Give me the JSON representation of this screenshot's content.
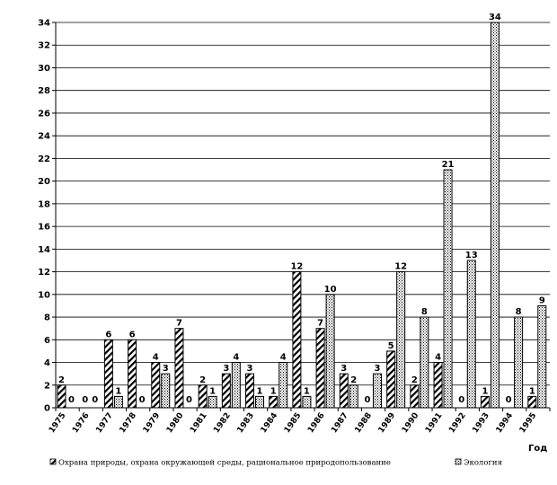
{
  "chart_data": {
    "type": "bar",
    "categories": [
      "1975",
      "1976",
      "1977",
      "1978",
      "1979",
      "1980",
      "1981",
      "1982",
      "1983",
      "1984",
      "1985",
      "1986",
      "1987",
      "1988",
      "1989",
      "1990",
      "1991",
      "1992",
      "1993",
      "1994",
      "1995"
    ],
    "series": [
      {
        "name": "Охрана природы, охрана окружающей среды, рациональное природопользование",
        "values": [
          2,
          0,
          6,
          6,
          4,
          7,
          2,
          3,
          3,
          1,
          12,
          7,
          3,
          0,
          5,
          2,
          4,
          0,
          1,
          0,
          1
        ],
        "pattern": "diagonal-hatch"
      },
      {
        "name": "Экология",
        "values": [
          0,
          0,
          1,
          0,
          3,
          0,
          1,
          4,
          1,
          4,
          1,
          10,
          2,
          3,
          12,
          8,
          21,
          13,
          34,
          8,
          9
        ],
        "pattern": "dotted"
      }
    ],
    "xlabel": "Год",
    "ylabel": "",
    "ylim": [
      0,
      34
    ],
    "yticks": [
      0,
      2,
      4,
      6,
      8,
      10,
      12,
      14,
      16,
      18,
      20,
      22,
      24,
      26,
      28,
      30,
      32,
      34
    ],
    "grid": true,
    "legend": "bottom",
    "colors": {
      "bar_stroke": "#000000",
      "grid": "#000000",
      "background": "#ffffff"
    }
  }
}
